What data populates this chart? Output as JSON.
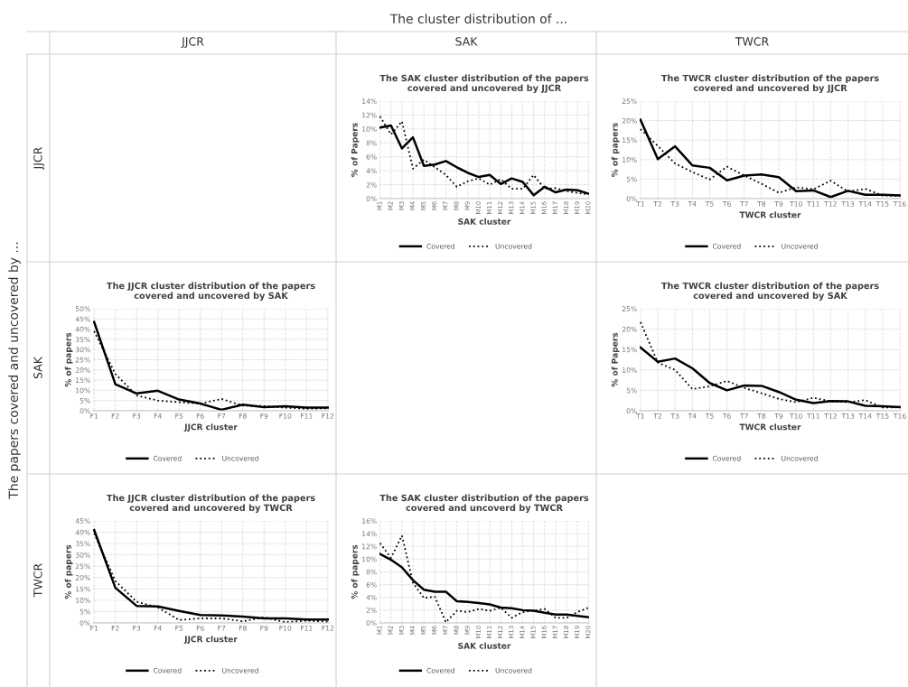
{
  "chart_data": [
    {
      "type": "other",
      "title": "The cluster distribution of ...",
      "ylabel": "The papers covered and uncovered by ...",
      "annotations": [
        "JJCR",
        "SAK",
        "TWCR",
        "JJCR",
        "SAK",
        "TWCR"
      ]
    },
    {
      "type": "line",
      "title": "The SAK cluster distribution of the papers\ncovered and uncovered by JJCR",
      "xlabel": "SAK cluster",
      "ylabel": "% of Papers",
      "categories": [
        "M1",
        "M2",
        "M3",
        "M4",
        "M5",
        "M6",
        "M7",
        "M8",
        "M9",
        "M10",
        "M11",
        "M12",
        "M13",
        "M14",
        "M15",
        "M16",
        "M17",
        "M18",
        "M19",
        "M20"
      ],
      "ylim": [
        0,
        14
      ],
      "yticks": [
        {
          "value": 0,
          "label": "0%"
        },
        {
          "value": 2,
          "label": "2%"
        },
        {
          "value": 4,
          "label": "4%"
        },
        {
          "value": 6,
          "label": "6%"
        },
        {
          "value": 8,
          "label": "8%"
        },
        {
          "value": 10,
          "label": "10%"
        },
        {
          "value": 12,
          "label": "12%"
        },
        {
          "value": 14,
          "label": "14%"
        }
      ],
      "grid": true,
      "legend": "bottom",
      "marker": "none",
      "series": [
        {
          "name": "Covered",
          "color": "#000000",
          "line_style": "solid",
          "values": [
            10.2,
            10.5,
            7.2,
            8.8,
            4.7,
            4.9,
            5.4,
            4.5,
            3.7,
            3.1,
            3.4,
            2.1,
            2.9,
            2.4,
            0.5,
            1.7,
            0.9,
            1.3,
            1.2,
            0.7
          ]
        },
        {
          "name": "Uncovered",
          "color": "#000000",
          "line_style": "dotted",
          "values": [
            11.8,
            9.2,
            11.1,
            4.3,
            5.6,
            4.5,
            3.4,
            1.7,
            2.5,
            2.9,
            2.0,
            2.8,
            1.4,
            1.4,
            3.4,
            1.4,
            1.5,
            1.1,
            0.8,
            0.6
          ]
        }
      ]
    },
    {
      "type": "line",
      "title": "The TWCR cluster distribution of the papers\ncovered and uncovered by JJCR",
      "xlabel": "TWCR cluster",
      "ylabel": "% of papers",
      "categories": [
        "T1",
        "T2",
        "T3",
        "T4",
        "T5",
        "T6",
        "T7",
        "T8",
        "T9",
        "T10",
        "T11",
        "T12",
        "T13",
        "T14",
        "T15",
        "T16"
      ],
      "ylim": [
        0,
        25
      ],
      "yticks": [
        {
          "value": 0,
          "label": "0%"
        },
        {
          "value": 5,
          "label": "5%"
        },
        {
          "value": 10,
          "label": "10%"
        },
        {
          "value": 15,
          "label": "15%"
        },
        {
          "value": 20,
          "label": "20%"
        },
        {
          "value": 25,
          "label": "25%"
        }
      ],
      "grid": true,
      "legend": "bottom",
      "marker": "none",
      "series": [
        {
          "name": "Covered",
          "color": "#000000",
          "line_style": "solid",
          "values": [
            20.2,
            10.1,
            13.4,
            8.5,
            7.9,
            4.7,
            5.9,
            6.2,
            5.5,
            1.9,
            2.1,
            0.4,
            2.0,
            1.0,
            1.0,
            0.8
          ]
        },
        {
          "name": "Uncovered",
          "color": "#000000",
          "line_style": "dotted",
          "values": [
            17.8,
            13.5,
            9.0,
            6.8,
            4.9,
            8.2,
            5.9,
            3.8,
            1.5,
            2.9,
            2.4,
            4.6,
            1.8,
            2.5,
            0.8,
            0.7
          ]
        }
      ]
    },
    {
      "type": "line",
      "title": "The JJCR cluster distribution of the papers\ncovered and uncovered by SAK",
      "xlabel": "JJCR cluster",
      "ylabel": "% of papers",
      "categories": [
        "F1",
        "F2",
        "F3",
        "F4",
        "F5",
        "F6",
        "F7",
        "F8",
        "F9",
        "F10",
        "F11",
        "F12"
      ],
      "ylim": [
        0,
        50
      ],
      "yticks": [
        {
          "value": 0,
          "label": "0%"
        },
        {
          "value": 5,
          "label": "5%"
        },
        {
          "value": 10,
          "label": "10%"
        },
        {
          "value": 15,
          "label": "15%"
        },
        {
          "value": 20,
          "label": "20%"
        },
        {
          "value": 25,
          "label": "25%"
        },
        {
          "value": 30,
          "label": "30%"
        },
        {
          "value": 35,
          "label": "35%"
        },
        {
          "value": 40,
          "label": "40%"
        },
        {
          "value": 45,
          "label": "45%"
        },
        {
          "value": 50,
          "label": "50%"
        }
      ],
      "grid": true,
      "legend": "bottom",
      "marker": "none",
      "series": [
        {
          "name": "Covered",
          "color": "#000000",
          "line_style": "solid",
          "values": [
            43.5,
            13,
            8.5,
            9.8,
            5.5,
            3.5,
            0.5,
            3,
            1.8,
            2.2,
            1.5,
            1.5
          ]
        },
        {
          "name": "Uncovered",
          "color": "#000000",
          "line_style": "dotted",
          "values": [
            39,
            18,
            7.5,
            5,
            4.2,
            3.5,
            5.8,
            2.5,
            2.3,
            1.5,
            1.0,
            1.2
          ]
        }
      ]
    },
    {
      "type": "line",
      "title": "The TWCR cluster distribution of the papers\ncovered and uncovered by SAK",
      "xlabel": "TWCR cluster",
      "ylabel": "% of Papers",
      "categories": [
        "T1",
        "T2",
        "T3",
        "T4",
        "T5",
        "T6",
        "T7",
        "T8",
        "T9",
        "T10",
        "T11",
        "T12",
        "T13",
        "T14",
        "T15",
        "T16"
      ],
      "ylim": [
        0,
        25
      ],
      "yticks": [
        {
          "value": 0,
          "label": "0%"
        },
        {
          "value": 5,
          "label": "5%"
        },
        {
          "value": 10,
          "label": "10%"
        },
        {
          "value": 15,
          "label": "15%"
        },
        {
          "value": 20,
          "label": "20%"
        },
        {
          "value": 25,
          "label": "25%"
        }
      ],
      "grid": true,
      "legend": "bottom",
      "marker": "none",
      "series": [
        {
          "name": "Covered",
          "color": "#000000",
          "line_style": "solid",
          "values": [
            15.5,
            12.0,
            12.8,
            10.4,
            6.8,
            5.0,
            6.2,
            6.1,
            4.6,
            2.7,
            1.9,
            2.4,
            2.3,
            1.2,
            1.1,
            0.9
          ]
        },
        {
          "name": "Uncovered",
          "color": "#000000",
          "line_style": "dotted",
          "values": [
            21.7,
            11.8,
            10.0,
            5.3,
            6.0,
            7.3,
            5.6,
            4.3,
            2.9,
            2.1,
            3.2,
            2.3,
            2.1,
            2.6,
            0.8,
            0.8
          ]
        }
      ]
    },
    {
      "type": "line",
      "title": "The JJCR cluster distribution of the papers\ncovered and uncovered by TWCR",
      "xlabel": "JJCR cluster",
      "ylabel": "% of papers",
      "categories": [
        "F1",
        "F2",
        "F3",
        "F4",
        "F5",
        "F6",
        "F7",
        "F8",
        "F9",
        "F10",
        "F11",
        "F12"
      ],
      "ylim": [
        0,
        45
      ],
      "yticks": [
        {
          "value": 0,
          "label": "0%"
        },
        {
          "value": 5,
          "label": "5%"
        },
        {
          "value": 10,
          "label": "10%"
        },
        {
          "value": 15,
          "label": "15%"
        },
        {
          "value": 20,
          "label": "20%"
        },
        {
          "value": 25,
          "label": "25%"
        },
        {
          "value": 30,
          "label": "30%"
        },
        {
          "value": 35,
          "label": "35%"
        },
        {
          "value": 40,
          "label": "40%"
        },
        {
          "value": 45,
          "label": "45%"
        }
      ],
      "grid": true,
      "legend": "bottom",
      "marker": "none",
      "series": [
        {
          "name": "Covered",
          "color": "#000000",
          "line_style": "solid",
          "values": [
            41,
            15.5,
            7.5,
            7.3,
            5.3,
            3.5,
            3.3,
            2.8,
            2.0,
            2.0,
            1.5,
            1.5
          ]
        },
        {
          "name": "Uncovered",
          "color": "#000000",
          "line_style": "dotted",
          "values": [
            39.5,
            18.5,
            9.3,
            6.8,
            1.3,
            2.0,
            2.0,
            0.7,
            2.5,
            0.3,
            1.0,
            0.6
          ]
        }
      ]
    },
    {
      "type": "line",
      "title": "The SAK cluster distribution of the papers\ncovered and uncoverd by TWCR",
      "xlabel": "SAK cluster",
      "ylabel": "% of papers",
      "categories": [
        "M1",
        "M2",
        "M3",
        "M4",
        "M5",
        "M6",
        "M7",
        "M8",
        "M9",
        "M10",
        "M11",
        "M12",
        "M13",
        "M14",
        "M15",
        "M16",
        "M17",
        "M18",
        "M19",
        "M20"
      ],
      "ylim": [
        0,
        16
      ],
      "yticks": [
        {
          "value": 0,
          "label": "0%"
        },
        {
          "value": 2,
          "label": "2%"
        },
        {
          "value": 4,
          "label": "4%"
        },
        {
          "value": 6,
          "label": "6%"
        },
        {
          "value": 8,
          "label": "8%"
        },
        {
          "value": 10,
          "label": "10%"
        },
        {
          "value": 12,
          "label": "12%"
        },
        {
          "value": 14,
          "label": "14%"
        },
        {
          "value": 16,
          "label": "16%"
        }
      ],
      "grid": true,
      "legend": "bottom",
      "marker": "none",
      "series": [
        {
          "name": "Covered",
          "color": "#000000",
          "line_style": "solid",
          "values": [
            10.8,
            9.9,
            8.7,
            6.7,
            5.2,
            4.9,
            4.9,
            3.4,
            3.3,
            3.1,
            2.9,
            2.4,
            2.3,
            2.0,
            1.9,
            1.6,
            1.3,
            1.3,
            1.1,
            0.9
          ]
        },
        {
          "name": "Uncovered",
          "color": "#000000",
          "line_style": "dotted",
          "values": [
            12.5,
            10.2,
            13.7,
            6.3,
            3.9,
            4.1,
            0.1,
            1.9,
            1.7,
            2.2,
            1.9,
            2.4,
            0.8,
            1.7,
            1.9,
            2.2,
            0.8,
            0.8,
            1.7,
            2.4
          ]
        }
      ]
    }
  ]
}
